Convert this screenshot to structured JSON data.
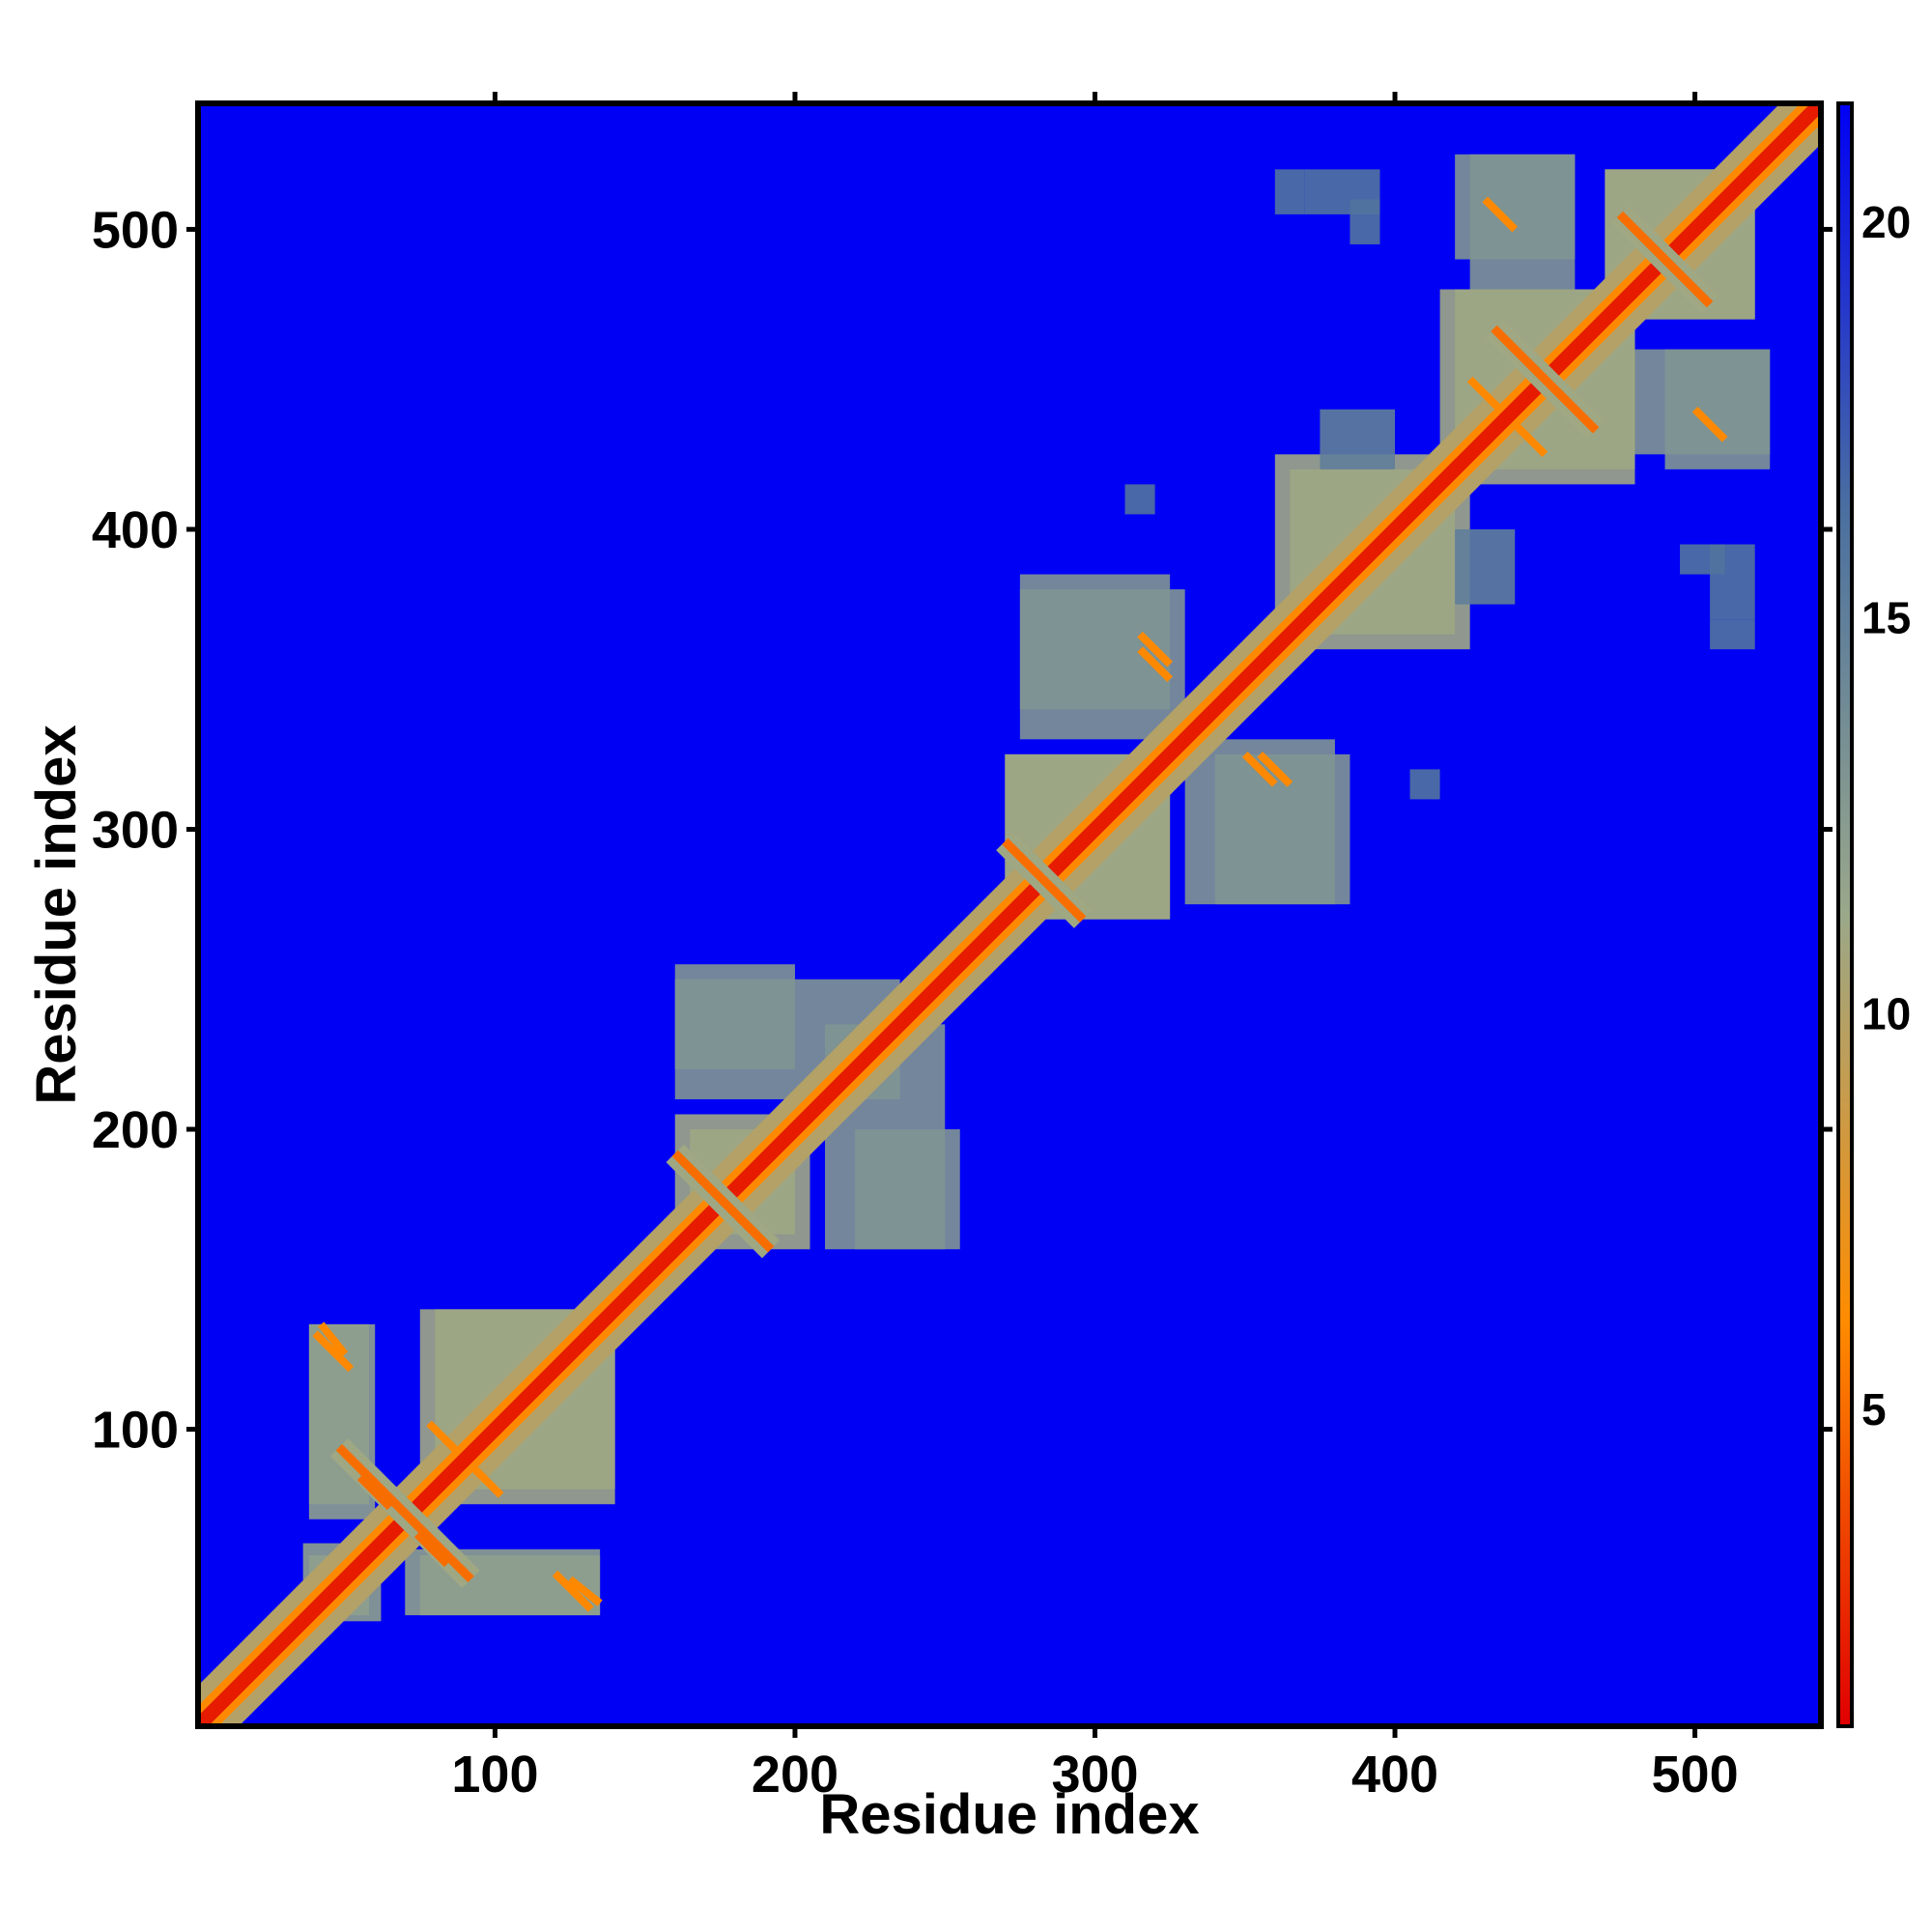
{
  "chart_data": {
    "type": "heatmap",
    "title": "",
    "xlabel": "Residue index",
    "ylabel": "Residue index",
    "xlim": [
      1,
      542
    ],
    "ylim": [
      1,
      542
    ],
    "x_ticks": [
      100,
      200,
      300,
      400,
      500
    ],
    "y_ticks": [
      100,
      200,
      300,
      400,
      500
    ],
    "colorbar": {
      "ticks": [
        5,
        10,
        15,
        20
      ],
      "range": [
        1,
        21.5
      ],
      "colors": [
        "#e00000",
        "#ff8c00",
        "#9aa88a",
        "#4a6fa0",
        "#0000f5"
      ]
    },
    "background_value": 21.5,
    "background_color": "#0000f5",
    "diagonal": {
      "from": 1,
      "to": 542,
      "value": 2,
      "band_width": 6
    },
    "cross_motifs": [
      {
        "x": 70,
        "y": 72,
        "half_length": 22,
        "value": 5
      },
      {
        "x": 176,
        "y": 176,
        "half_length": 16,
        "value": 5
      },
      {
        "x": 283,
        "y": 283,
        "half_length": 13,
        "value": 5
      },
      {
        "x": 450,
        "y": 450,
        "half_length": 17,
        "value": 5
      },
      {
        "x": 490,
        "y": 490,
        "half_length": 15,
        "value": 5
      }
    ],
    "contact_blocks": [
      {
        "x": [
          38,
          60
        ],
        "y": [
          70,
          135
        ],
        "value": 12
      },
      {
        "x": [
          75,
          140
        ],
        "y": [
          80,
          140
        ],
        "value": 11
      },
      {
        "x": [
          75,
          135
        ],
        "y": [
          38,
          58
        ],
        "value": 12
      },
      {
        "x": [
          36,
          58
        ],
        "y": [
          38,
          62
        ],
        "value": 12
      },
      {
        "x": [
          160,
          200
        ],
        "y": [
          165,
          205
        ],
        "value": 11
      },
      {
        "x": [
          160,
          200
        ],
        "y": [
          220,
          255
        ],
        "value": 13
      },
      {
        "x": [
          210,
          250
        ],
        "y": [
          160,
          235
        ],
        "value": 13
      },
      {
        "x": [
          270,
          325
        ],
        "y": [
          270,
          325
        ],
        "value": 11
      },
      {
        "x": [
          275,
          325
        ],
        "y": [
          340,
          385
        ],
        "value": 13
      },
      {
        "x": [
          330,
          380
        ],
        "y": [
          275,
          330
        ],
        "value": 13
      },
      {
        "x": [
          360,
          420
        ],
        "y": [
          365,
          425
        ],
        "value": 11
      },
      {
        "x": [
          415,
          480
        ],
        "y": [
          420,
          480
        ],
        "value": 11
      },
      {
        "x": [
          470,
          520
        ],
        "y": [
          470,
          520
        ],
        "value": 11
      },
      {
        "x": [
          420,
          460
        ],
        "y": [
          490,
          525
        ],
        "value": 13
      },
      {
        "x": [
          480,
          525
        ],
        "y": [
          425,
          460
        ],
        "value": 13
      },
      {
        "x": [
          420,
          440
        ],
        "y": [
          375,
          400
        ],
        "value": 15
      },
      {
        "x": [
          505,
          520
        ],
        "y": [
          370,
          395
        ],
        "value": 16
      },
      {
        "x": [
          405,
          415
        ],
        "y": [
          310,
          320
        ],
        "value": 16
      },
      {
        "x": [
          360,
          370
        ],
        "y": [
          505,
          520
        ],
        "value": 16
      },
      {
        "x": [
          385,
          395
        ],
        "y": [
          495,
          510
        ],
        "value": 16
      }
    ],
    "contact_lines": [
      {
        "from": [
          42,
          135
        ],
        "to": [
          50,
          125
        ],
        "value": 6
      },
      {
        "from": [
          55,
          84
        ],
        "to": [
          65,
          74
        ],
        "value": 5
      },
      {
        "from": [
          78,
          102
        ],
        "to": [
          88,
          92
        ],
        "value": 6
      },
      {
        "from": [
          120,
          52
        ],
        "to": [
          132,
          40
        ],
        "value": 6
      },
      {
        "from": [
          315,
          365
        ],
        "to": [
          325,
          355
        ],
        "value": 6
      },
      {
        "from": [
          350,
          325
        ],
        "to": [
          360,
          315
        ],
        "value": 6
      },
      {
        "from": [
          425,
          450
        ],
        "to": [
          435,
          440
        ],
        "value": 6
      },
      {
        "from": [
          500,
          440
        ],
        "to": [
          510,
          430
        ],
        "value": 6
      }
    ]
  }
}
